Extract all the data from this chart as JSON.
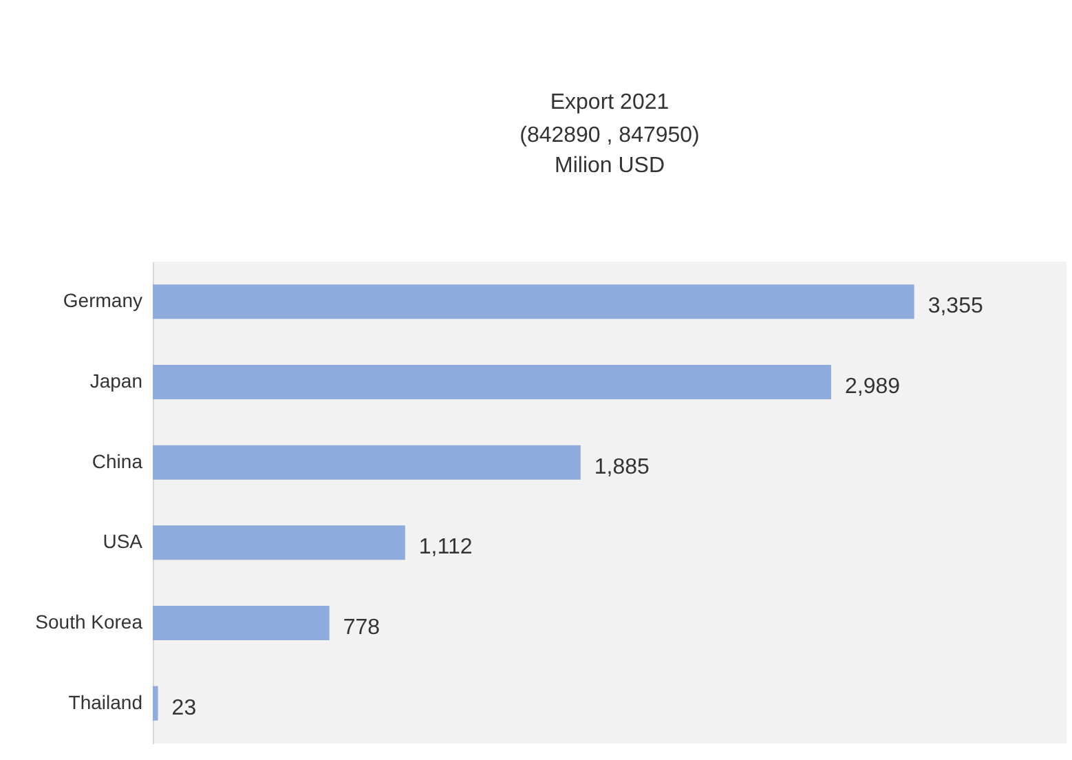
{
  "chart_data": {
    "type": "bar",
    "orientation": "horizontal",
    "title": "Export 2021",
    "subtitle": "(842890 , 847950)",
    "annotations": [
      "Milion USD"
    ],
    "categories": [
      "Germany",
      "Japan",
      "China",
      "USA",
      "South Korea",
      "Thailand"
    ],
    "values": [
      3355,
      2989,
      1885,
      1112,
      778,
      23
    ],
    "value_labels": [
      "3,355",
      "2,989",
      "1,885",
      "1,112",
      "778",
      "23"
    ],
    "color": "#8faadc",
    "tick_labels": "y"
  }
}
